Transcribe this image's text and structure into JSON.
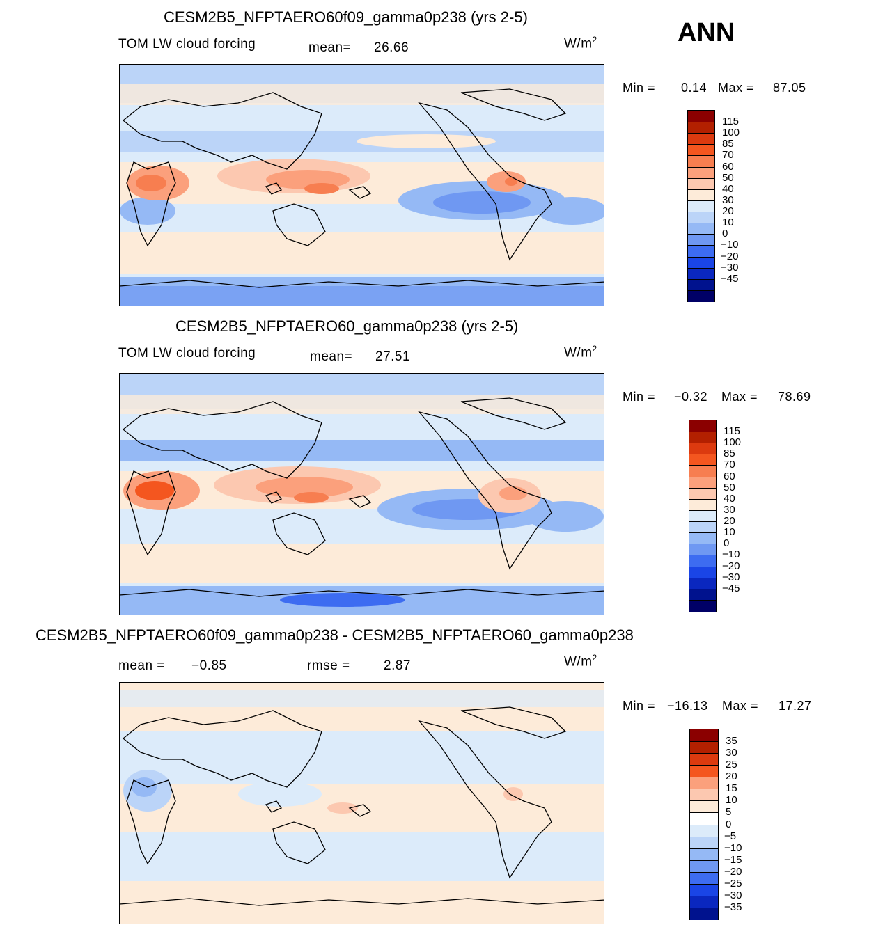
{
  "season": "ANN",
  "units_base": "W/m",
  "units_exp": "2",
  "panels": [
    {
      "title": "CESM2B5_NFPTAERO60f09_gamma0p238 (yrs 2-5)",
      "variable": "TOM LW cloud forcing",
      "mean_label": "mean=",
      "mean_value": "26.66",
      "min_label": "Min =",
      "min_value": "0.14",
      "max_label": "Max =",
      "max_value": "87.05",
      "colorbar_levels": [
        "115",
        "100",
        "85",
        "70",
        "60",
        "50",
        "40",
        "30",
        "20",
        "10",
        "0",
        "−10",
        "−20",
        "−30",
        "−45"
      ],
      "map_description": "contour map"
    },
    {
      "title": "CESM2B5_NFPTAERO60_gamma0p238 (yrs 2-5)",
      "variable": "TOM LW cloud forcing",
      "mean_label": "mean=",
      "mean_value": "27.51",
      "min_label": "Min =",
      "min_value": "−0.32",
      "max_label": "Max =",
      "max_value": "78.69",
      "colorbar_levels": [
        "115",
        "100",
        "85",
        "70",
        "60",
        "50",
        "40",
        "30",
        "20",
        "10",
        "0",
        "−10",
        "−20",
        "−30",
        "−45"
      ]
    },
    {
      "title": "CESM2B5_NFPTAERO60f09_gamma0p238 - CESM2B5_NFPTAERO60_gamma0p238",
      "mean_label": "mean =",
      "mean_value": "−0.85",
      "rmse_label": "rmse =",
      "rmse_value": "2.87",
      "min_label": "Min =",
      "min_value": "−16.13",
      "max_label": "Max =",
      "max_value": "17.27",
      "colorbar_levels": [
        "35",
        "30",
        "25",
        "20",
        "15",
        "10",
        "5",
        "0",
        "−5",
        "−10",
        "−15",
        "−20",
        "−25",
        "−30",
        "−35"
      ]
    }
  ],
  "colors": {
    "field": [
      "#8b0000",
      "#b32000",
      "#dc3a0f",
      "#f4561f",
      "#f77e50",
      "#fba07c",
      "#fcc8b0",
      "#fdebd9",
      "#dcebfa",
      "#bbd4f8",
      "#95b9f5",
      "#6f98f2",
      "#3d6cf1",
      "#1a45e6",
      "#0a27bf",
      "#00128e",
      "#000066"
    ],
    "diff": [
      "#8b0000",
      "#b32000",
      "#dc3a0f",
      "#f4561f",
      "#fba07c",
      "#fcc8b0",
      "#fdebd9",
      "#ffffff",
      "#dcebfa",
      "#bbd4f8",
      "#95b9f5",
      "#6f98f2",
      "#3d6cf1",
      "#1a45e6",
      "#0a27bf",
      "#00128e"
    ]
  }
}
